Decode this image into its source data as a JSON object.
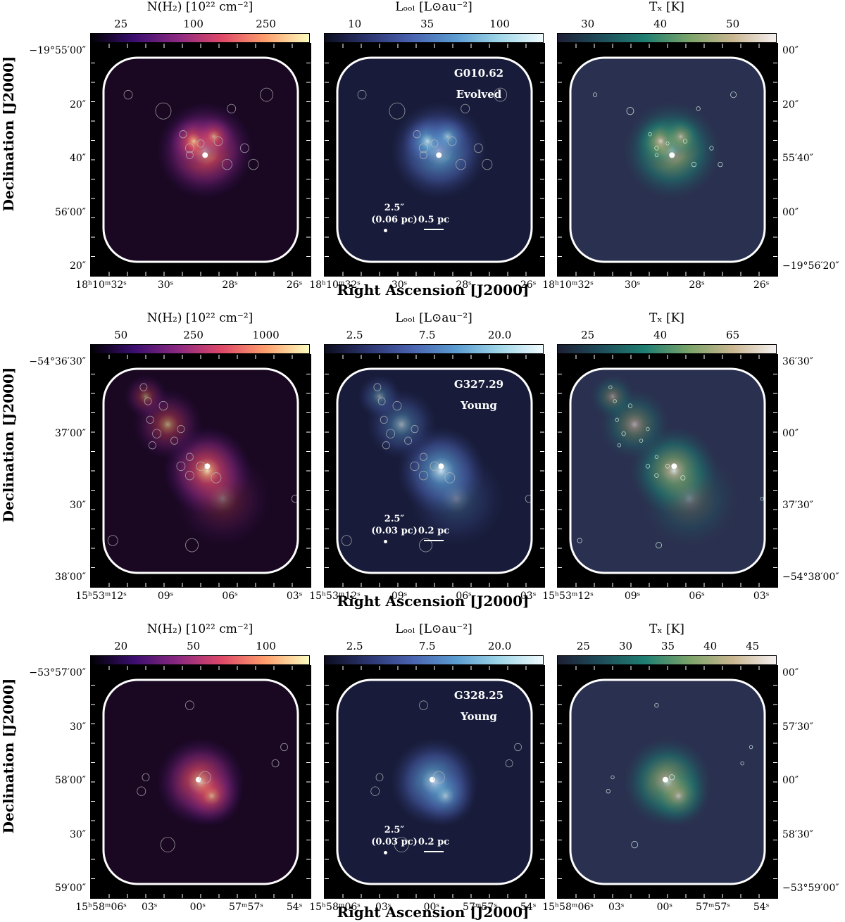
{
  "rows": [
    {
      "region": "G010.62",
      "stage": "Evolved",
      "colorbars": [
        {
          "title": "N(H₂) [10²² cm⁻²]",
          "ticks": [
            "25",
            "100",
            "250"
          ]
        },
        {
          "title": "Lₒₒₗ [L⊙au⁻²]",
          "ticks": [
            "10",
            "35",
            "100"
          ]
        },
        {
          "title": "Tₓ [K]",
          "ticks": [
            "30",
            "40",
            "50"
          ]
        }
      ],
      "dec_ticks_left": [
        "−19°55′00″",
        "20″",
        "40″",
        "56′00″",
        "20″"
      ],
      "dec_ticks_right": [
        "00″",
        "20″",
        "55′40″",
        "00″",
        "−19°56′20″"
      ],
      "ra_ticks": [
        "18ʰ10ᵐ32ˢ",
        "30ˢ",
        "28ˢ",
        "26ˢ"
      ],
      "beam_label": "2.5″",
      "beam_pc": "(0.06 pc)",
      "scale_label": "0.5 pc"
    },
    {
      "region": "G327.29",
      "stage": "Young",
      "colorbars": [
        {
          "title": "N(H₂) [10²² cm⁻²]",
          "ticks": [
            "50",
            "250",
            "1000"
          ]
        },
        {
          "title": "Lₒₒₗ [L⊙au⁻²]",
          "ticks": [
            "2.5",
            "7.5",
            "20.0"
          ]
        },
        {
          "title": "Tₓ [K]",
          "ticks": [
            "25",
            "40",
            "65"
          ]
        }
      ],
      "dec_ticks_left": [
        "−54°36′30″",
        "37′00″",
        "30″",
        "38′00″"
      ],
      "dec_ticks_right": [
        "36′30″",
        "00″",
        "37′30″",
        "−54°38′00″"
      ],
      "ra_ticks": [
        "15ʰ53ᵐ12ˢ",
        "09ˢ",
        "06ˢ",
        "03ˢ"
      ],
      "beam_label": "2.5″",
      "beam_pc": "(0.03 pc)",
      "scale_label": "0.2 pc"
    },
    {
      "region": "G328.25",
      "stage": "Young",
      "colorbars": [
        {
          "title": "N(H₂) [10²² cm⁻²]",
          "ticks": [
            "20",
            "50",
            "100"
          ]
        },
        {
          "title": "Lₒₒₗ [L⊙au⁻²]",
          "ticks": [
            "2.5",
            "7.5",
            "20.0"
          ]
        },
        {
          "title": "Tₓ [K]",
          "ticks": [
            "25",
            "30",
            "35",
            "40",
            "45"
          ]
        }
      ],
      "dec_ticks_left": [
        "−53°57′00″",
        "30″",
        "58′00″",
        "30″",
        "59′00″"
      ],
      "dec_ticks_right": [
        "00″",
        "57′30″",
        "00″",
        "58′30″",
        "−53°59′00″"
      ],
      "ra_ticks": [
        "15ʰ58ᵐ06ˢ",
        "03ˢ",
        "00ˢ",
        "57ᵐ57ˢ",
        "54ˢ"
      ],
      "beam_label": "2.5″",
      "beam_pc": "(0.03 pc)",
      "scale_label": "0.2 pc"
    }
  ],
  "axis": {
    "x_title": "Right Ascension [J2000]",
    "y_title": "Declination [J2000]"
  },
  "colormaps": {
    "column_density": [
      "#000004",
      "#3b0f70",
      "#8c2981",
      "#de4968",
      "#fe9f6d",
      "#fcfdbf"
    ],
    "luminosity": [
      "#0b0d1e",
      "#2c3570",
      "#4a63b0",
      "#5a9bd0",
      "#9fd6e8",
      "#f0fbfd"
    ],
    "temperature": [
      "#1d1f35",
      "#1f4d5a",
      "#1f7f72",
      "#7aa36a",
      "#c9b690",
      "#f5f0f0"
    ]
  }
}
